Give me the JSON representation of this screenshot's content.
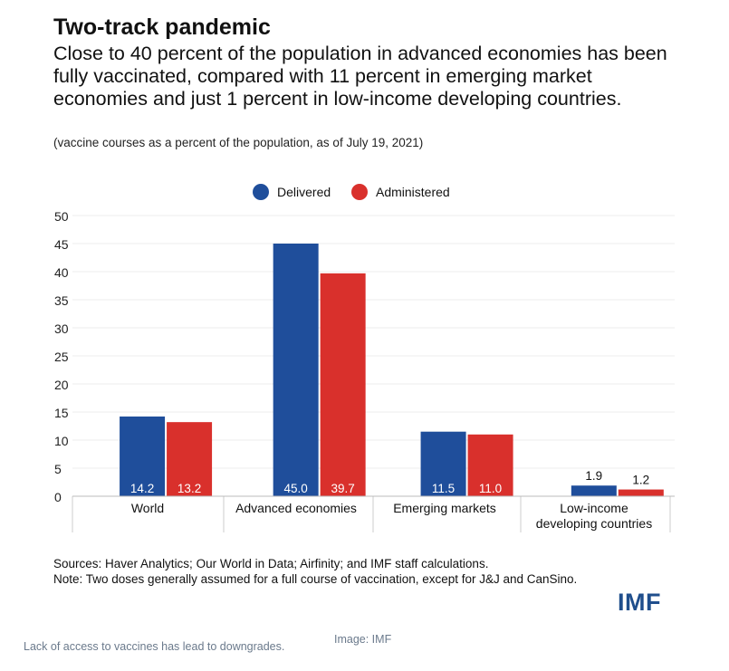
{
  "header": {
    "title": "Two-track pandemic",
    "subtitle": "Close to 40 percent of the population in advanced economies has been fully vaccinated, compared with 11 percent in emerging market economies and just 1 percent in low-income developing countries.",
    "note": "(vaccine courses as a percent of the population, as of July 19, 2021)"
  },
  "chart_data": {
    "type": "bar",
    "categories": [
      "World",
      "Advanced economies",
      "Emerging markets",
      "Low-income developing countries"
    ],
    "series": [
      {
        "name": "Delivered",
        "color": "#1f4e9b",
        "values": [
          14.2,
          45.0,
          11.5,
          1.9
        ],
        "labels": [
          "14.2",
          "45.0",
          "11.5",
          "1.9"
        ]
      },
      {
        "name": "Administered",
        "color": "#d9302c",
        "values": [
          13.2,
          39.7,
          11.0,
          1.2
        ],
        "labels": [
          "13.2",
          "39.7",
          "11.0",
          "1.2"
        ]
      }
    ],
    "ylim": [
      0,
      50
    ],
    "yticks": [
      0,
      5,
      10,
      15,
      20,
      25,
      30,
      35,
      40,
      45,
      50
    ],
    "grid": true,
    "legend_position": "top-center"
  },
  "footer": {
    "sources": "Sources: Haver Analytics; Our World in Data; Airfinity; and IMF staff calculations.",
    "note": "Note: Two doses generally assumed for a full course of vaccination, except for J&J and CanSino.",
    "brand": "IMF"
  },
  "page": {
    "caption": "Lack of access to vaccines has lead to downgrades.",
    "credit": "Image: IMF"
  }
}
